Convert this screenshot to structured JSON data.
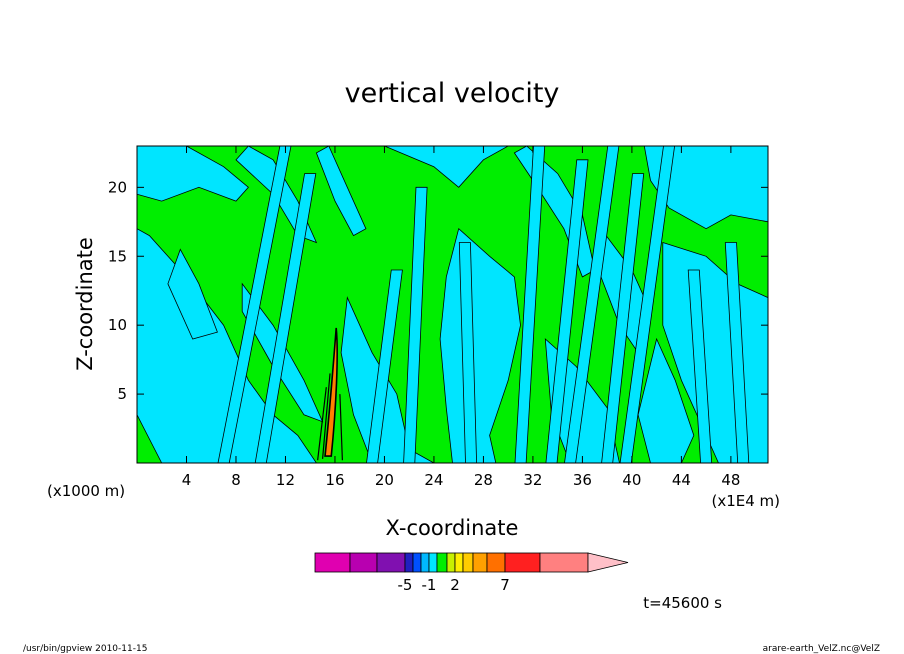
{
  "chart_data": {
    "type": "heatmap",
    "subtype": "filled-contour",
    "title": "vertical velocity",
    "xlabel": "X-coordinate",
    "ylabel": "Z-coordinate",
    "x_unit_left": "(x1000 m)",
    "x_unit_right": "(x1E4 m)",
    "xlim": [
      0,
      51
    ],
    "ylim": [
      0,
      23
    ],
    "xticks": [
      4,
      8,
      12,
      16,
      20,
      24,
      28,
      32,
      36,
      40,
      44,
      48
    ],
    "yticks": [
      5,
      10,
      15,
      20
    ],
    "grid": false,
    "legend": "colorbar-bottom",
    "dominant_fill_colors": {
      "positive": "#00ee00",
      "negative": "#00e5ff",
      "contour_line": "#000000"
    },
    "colorbar": {
      "colors": [
        "#e000b0",
        "#b800b0",
        "#8010b0",
        "#2020c0",
        "#0050ff",
        "#00b8ff",
        "#00e5ff",
        "#00ee00",
        "#c8f000",
        "#ffee00",
        "#ffcc00",
        "#ffa000",
        "#ff7000",
        "#ff2020",
        "#ff8080",
        "#ffc0c8"
      ],
      "labels": [
        {
          "text": "-5",
          "after_segment": 3
        },
        {
          "text": "-1",
          "after_segment": 6
        },
        {
          "text": "2",
          "after_segment": 9
        },
        {
          "text": "7",
          "after_segment": 13
        }
      ]
    },
    "time_label": "t=45600 s"
  },
  "footer": {
    "left": "/usr/bin/gpview   2010-11-15",
    "right": "arare-earth_VelZ.nc@VelZ"
  }
}
